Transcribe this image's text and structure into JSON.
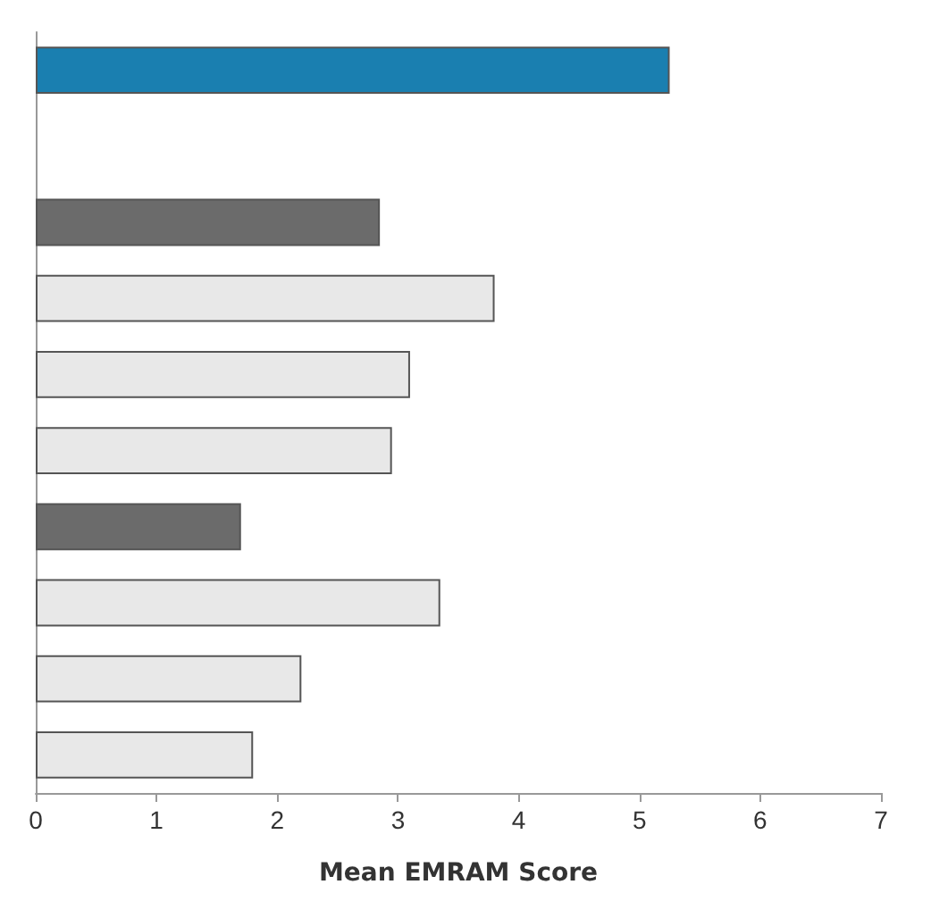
{
  "chart_data": {
    "type": "bar",
    "orientation": "horizontal",
    "xlabel": "Mean EMRAM Score",
    "categories": [
      null,
      null,
      null,
      null,
      null,
      null,
      null,
      null,
      null,
      null
    ],
    "values": [
      5.25,
      null,
      2.85,
      3.8,
      3.1,
      2.95,
      1.7,
      3.35,
      2.2,
      1.8
    ],
    "colors": [
      "#1a7fb0",
      "#e8e8e8",
      "#6b6b6b",
      "#e8e8e8",
      "#e8e8e8",
      "#e8e8e8",
      "#6b6b6b",
      "#e8e8e8",
      "#e8e8e8",
      "#e8e8e8"
    ],
    "xlim": [
      0,
      7
    ],
    "xticks": [
      0,
      1,
      2,
      3,
      4,
      5,
      6,
      7
    ],
    "grid": false
  }
}
